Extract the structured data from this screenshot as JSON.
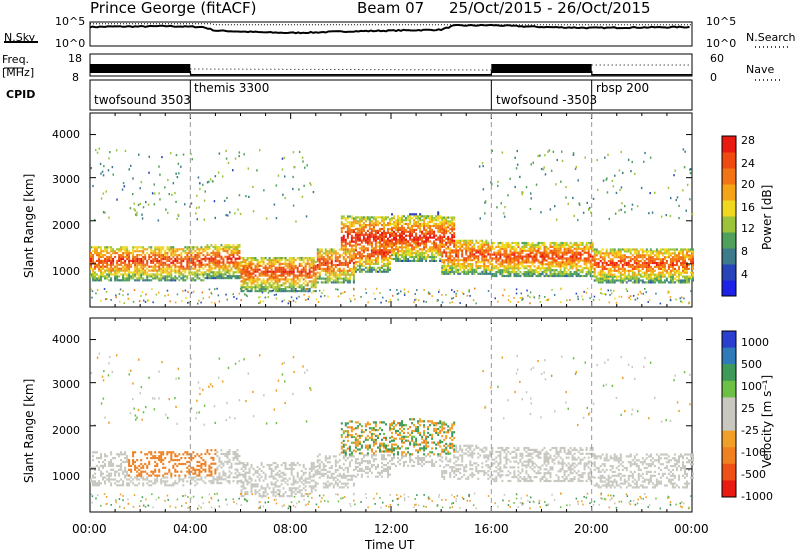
{
  "header": {
    "station": "Prince George (fitACF)",
    "beam": "Beam 07",
    "date_range": "25/Oct/2015 - 26/Oct/2015"
  },
  "left_labels": {
    "nsky": "N.Sky",
    "freq_line1": "Freq.",
    "freq_line2": "[MHz]",
    "cpid": "CPID"
  },
  "right_labels": {
    "nsearch": "N.Search",
    "nave": "Nave"
  },
  "nsky_axis": {
    "top": "10^5",
    "bottom": "10^0"
  },
  "nsearch_axis": {
    "top": "10^5",
    "bottom": "10^0"
  },
  "freq_axis": {
    "top": "18",
    "bottom": "8"
  },
  "nave_axis": {
    "top": "60",
    "bottom": "0"
  },
  "cpid": [
    {
      "name": "twofsound 3503",
      "start_h": 0
    },
    {
      "name": "themis 3300",
      "start_h": 4
    },
    {
      "name": "twofsound -3503",
      "start_h": 16
    },
    {
      "name": "rbsp 200",
      "start_h": 20
    }
  ],
  "power_panel": {
    "ylabel": "Slant Range [km]",
    "yticks": [
      "1000",
      "2000",
      "3000",
      "4000"
    ],
    "cbar_label": "Power [dB]",
    "cbar_ticks": [
      "4",
      "8",
      "12",
      "16",
      "20",
      "24",
      "28"
    ],
    "cbar_colors": [
      "#1e22e8",
      "#2744b8",
      "#3d7a8a",
      "#4fa05a",
      "#9cc43a",
      "#f0d820",
      "#f5a418",
      "#f27414",
      "#ef4a12",
      "#e81a12"
    ]
  },
  "velocity_panel": {
    "ylabel": "Slant Range [km]",
    "yticks": [
      "1000",
      "2000",
      "3000",
      "4000"
    ],
    "cbar_label": "Velocity [m s⁻¹]",
    "cbar_ticks": [
      "1000",
      "500",
      "100",
      "25",
      "-25",
      "-100",
      "-500",
      "-1000"
    ],
    "cbar_colors": [
      "#2a3fd0",
      "#2f7ab8",
      "#3f9a5a",
      "#6cc046",
      "#c8c8c0",
      "#c8c8c0",
      "#f0a028",
      "#f08020",
      "#ee5018",
      "#e81a12"
    ]
  },
  "xaxis": {
    "label": "Time UT",
    "ticks": [
      "00:00",
      "04:00",
      "08:00",
      "12:00",
      "16:00",
      "20:00",
      "00:00"
    ]
  },
  "chart_data": {
    "type": "heatmap",
    "x_range_hours": [
      0,
      24
    ],
    "y_range_km": [
      0,
      4500
    ],
    "scan_boundaries_h": [
      4,
      16,
      20
    ],
    "nsky_log10": [
      [
        0,
        4.2
      ],
      [
        1,
        4.3
      ],
      [
        2,
        4.3
      ],
      [
        3,
        4.4
      ],
      [
        4.5,
        4.2
      ],
      [
        5,
        3.4
      ],
      [
        6,
        3.2
      ],
      [
        7,
        3.0
      ],
      [
        8,
        2.9
      ],
      [
        9,
        3.0
      ],
      [
        10,
        3.2
      ],
      [
        12,
        3.4
      ],
      [
        14,
        3.6
      ],
      [
        14.5,
        4.5
      ],
      [
        16,
        4.6
      ],
      [
        18,
        4.2
      ],
      [
        20,
        4.0
      ],
      [
        22,
        4.1
      ],
      [
        24,
        4.2
      ]
    ],
    "freq_mhz": [
      [
        0,
        10
      ],
      [
        4,
        10
      ],
      [
        4.01,
        8.6
      ],
      [
        16,
        8.6
      ],
      [
        16.01,
        10
      ],
      [
        20,
        10
      ],
      [
        20.01,
        8.6
      ],
      [
        24,
        8.6
      ]
    ],
    "power_db_features": [
      {
        "t_start": 0,
        "t_end": 24,
        "range_km": 1000,
        "peak_db": 26
      },
      {
        "t_start": 10,
        "t_end": 15,
        "range_km": 1600,
        "peak_db": 30
      },
      {
        "t_start": 2.5,
        "t_end": 9,
        "range_km": 3200,
        "peak_db": 8
      }
    ],
    "velocity_features": [
      {
        "t_start": 0,
        "t_end": 24,
        "range_km": 1000,
        "velocity_ms": -25
      },
      {
        "t_start": 1.5,
        "t_end": 5,
        "range_km": 1200,
        "velocity_ms": -200
      },
      {
        "t_start": 10,
        "t_end": 15,
        "range_km": 1600,
        "velocity_ms": 50
      }
    ]
  }
}
